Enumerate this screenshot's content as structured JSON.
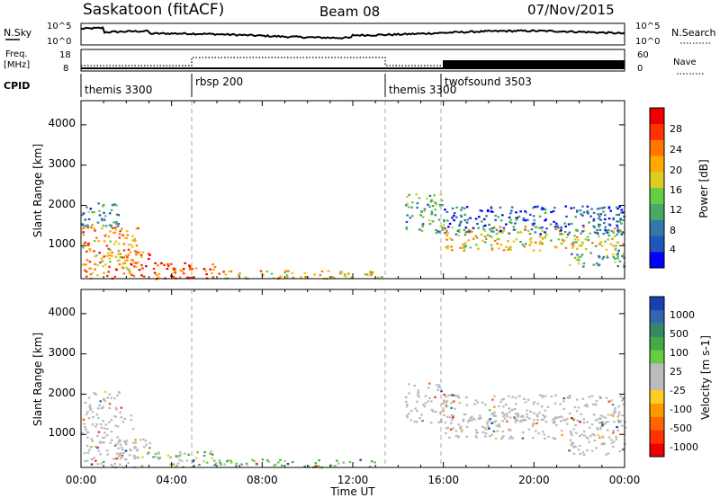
{
  "header": {
    "station": "Saskatoon (fitACF)",
    "beam": "Beam 08",
    "date": "07/Nov/2015"
  },
  "noise_panel": {
    "left_label": "N.Sky",
    "right_label": "N.Search",
    "left_ticks": [
      "10^5",
      "10^0"
    ],
    "right_ticks": [
      "10^5",
      "10^0"
    ]
  },
  "freq_panel": {
    "left_label": "Freq.",
    "left_unit": "[MHz]",
    "right_label": "Nave",
    "left_ticks": [
      "18",
      "8"
    ],
    "right_ticks": [
      "60",
      "0"
    ]
  },
  "cpid_panel": {
    "label": "CPID",
    "segments": [
      {
        "name": "themis 3300",
        "start_hour": 0
      },
      {
        "name": "rbsp 200",
        "start_hour": 5
      },
      {
        "name": "themis 3300",
        "start_hour": 13.5
      },
      {
        "name": "twofsound 3503",
        "start_hour": 16
      }
    ]
  },
  "x_axis": {
    "label": "Time UT",
    "ticks": [
      "00:00",
      "04:00",
      "08:00",
      "12:00",
      "16:00",
      "20:00",
      "00:00"
    ]
  },
  "power_panel": {
    "ylabel": "Slant Range [km]",
    "yticks": [
      "4000",
      "3000",
      "2000",
      "1000"
    ],
    "colorbar_label": "Power [dB]",
    "colorbar_ticks": [
      "28",
      "24",
      "20",
      "16",
      "12",
      "8",
      "4"
    ],
    "colors": [
      "#0000ff",
      "#2255bb",
      "#3377aa",
      "#44aa66",
      "#66cc44",
      "#ddcc22",
      "#ffaa00",
      "#ff7700",
      "#ff3300",
      "#ee0000"
    ]
  },
  "velocity_panel": {
    "ylabel": "Slant Range [km]",
    "yticks": [
      "4000",
      "3000",
      "2000",
      "1000"
    ],
    "colorbar_label": "Velocity [m s-1]",
    "colorbar_ticks": [
      "1000",
      "500",
      "100",
      "25",
      "-25",
      "-100",
      "-500",
      "-1000"
    ],
    "colors": [
      "#1a3fb0",
      "#3366aa",
      "#338866",
      "#44aa44",
      "#66cc44",
      "#bbbbbb",
      "#bbbbbb",
      "#ffcc22",
      "#ff9900",
      "#ff6600",
      "#ff3300",
      "#ee0000"
    ]
  },
  "chart_data": {
    "type": "heatmap",
    "x_range_hours": [
      0,
      24
    ],
    "y_range_km": [
      180,
      4600
    ],
    "power_regions": [
      {
        "t0": 0.0,
        "t1": 2.5,
        "r0": 200,
        "r1": 1500,
        "value_db": 22
      },
      {
        "t0": 0.0,
        "t1": 1.8,
        "r0": 1500,
        "r1": 2100,
        "value_db": 10
      },
      {
        "t0": 1.5,
        "t1": 3.0,
        "r0": 400,
        "r1": 900,
        "value_db": 24
      },
      {
        "t0": 2.5,
        "t1": 6.0,
        "r0": 200,
        "r1": 600,
        "value_db": 26
      },
      {
        "t0": 6.0,
        "t1": 13.5,
        "r0": 200,
        "r1": 400,
        "value_db": 20
      },
      {
        "t0": 14.3,
        "t1": 16.0,
        "r0": 1300,
        "r1": 2300,
        "value_db": 12
      },
      {
        "t0": 16.0,
        "t1": 24.0,
        "r0": 900,
        "r1": 1500,
        "value_db": 18
      },
      {
        "t0": 16.0,
        "t1": 24.0,
        "r0": 1300,
        "r1": 2000,
        "value_db": 6
      },
      {
        "t0": 21.5,
        "t1": 24.0,
        "r0": 500,
        "r1": 900,
        "value_db": 10
      }
    ]
  }
}
